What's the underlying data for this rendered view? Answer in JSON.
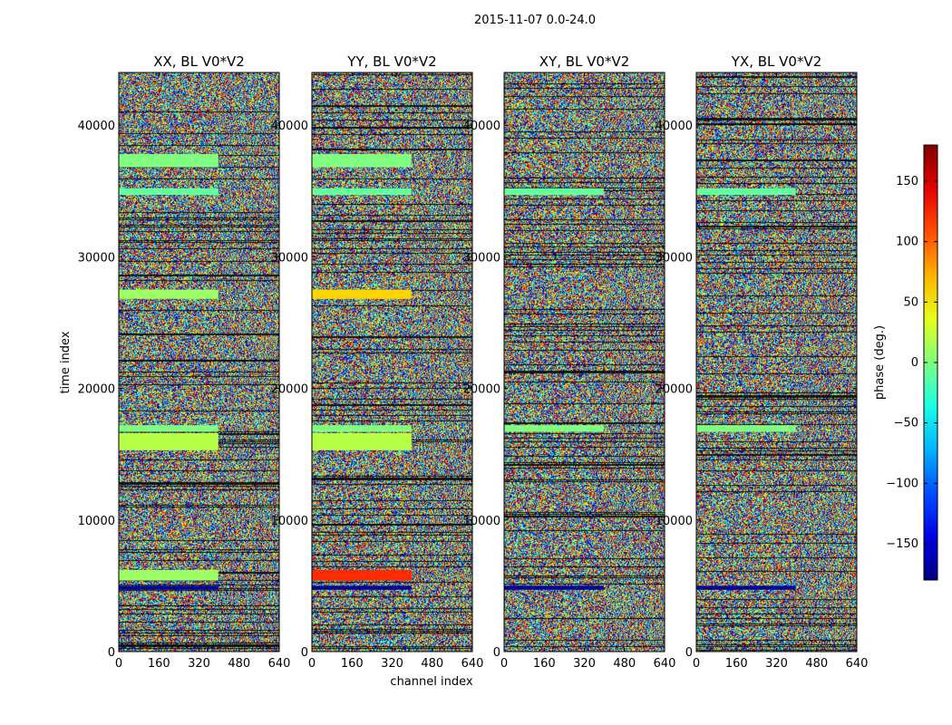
{
  "chart_data": {
    "type": "heatmap",
    "suptitle": "2015-11-07 0.0-24.0",
    "xlabel": "channel index",
    "ylabel": "time index",
    "x_range": [
      0,
      640
    ],
    "y_range": [
      0,
      44000
    ],
    "x_ticks": [
      "0",
      "160",
      "320",
      "480",
      "640"
    ],
    "y_ticks": [
      "0",
      "10000",
      "20000",
      "30000",
      "40000"
    ],
    "panels": [
      {
        "title": "XX, BL V0*V2"
      },
      {
        "title": "YY, BL V0*V2"
      },
      {
        "title": "XY, BL V0*V2"
      },
      {
        "title": "YX, BL V0*V2"
      }
    ],
    "colorbar": {
      "label": "phase (deg.)",
      "range": [
        -180,
        180
      ],
      "ticks": [
        "150",
        "100",
        "50",
        "0",
        "−50",
        "−100",
        "−150"
      ],
      "tick_values": [
        150,
        100,
        50,
        0,
        -50,
        -100,
        -150
      ],
      "colormap": "jet"
    },
    "bands": [
      {
        "y0": 36800,
        "y1": 37800,
        "phase": 0,
        "panels": [
          0,
          1
        ]
      },
      {
        "y0": 34700,
        "y1": 35200,
        "phase": -10,
        "panels": [
          0,
          1,
          2,
          3
        ]
      },
      {
        "y0": 26800,
        "y1": 27500,
        "phase": 10,
        "panels": [
          0
        ]
      },
      {
        "y0": 26800,
        "y1": 27500,
        "phase": 60,
        "panels": [
          1
        ]
      },
      {
        "y0": 16700,
        "y1": 17200,
        "phase": 0,
        "panels": [
          0,
          1,
          2,
          3
        ]
      },
      {
        "y0": 15300,
        "y1": 16600,
        "phase": 20,
        "panels": [
          0,
          1
        ]
      },
      {
        "y0": 5400,
        "y1": 6200,
        "phase": 10,
        "panels": [
          0
        ]
      },
      {
        "y0": 5400,
        "y1": 6200,
        "phase": 120,
        "panels": [
          1
        ]
      },
      {
        "y0": 4700,
        "y1": 5000,
        "phase": -170,
        "panels": [
          0,
          1,
          2,
          3
        ]
      }
    ]
  }
}
